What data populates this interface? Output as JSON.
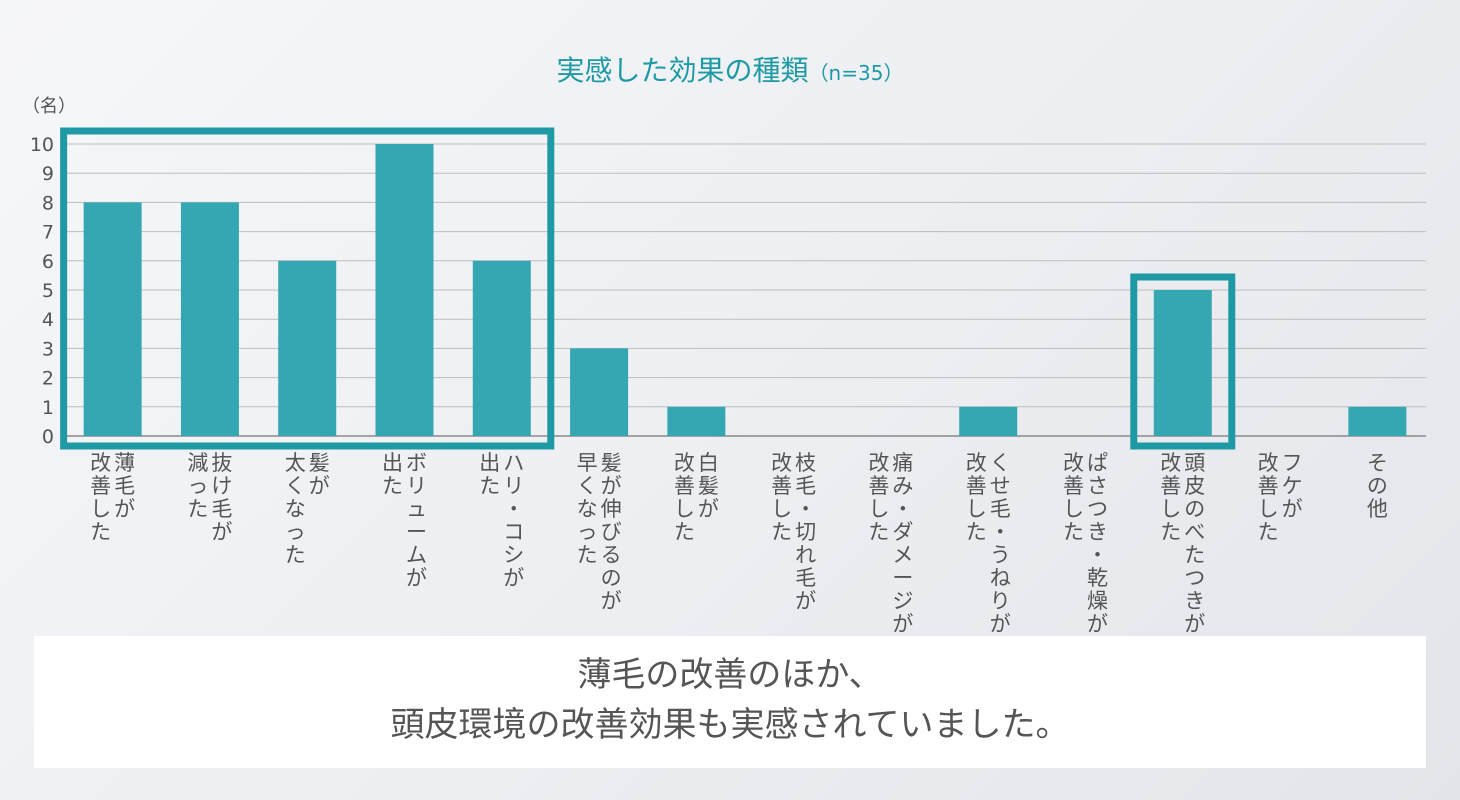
{
  "chart_data": {
    "type": "bar",
    "title": "実感した効果の種類",
    "title_note": "（n=35）",
    "ylabel": "（名）",
    "xlabel": "",
    "ylim": [
      0,
      10
    ],
    "yticks": [
      0,
      1,
      2,
      3,
      4,
      5,
      6,
      7,
      8,
      9,
      10
    ],
    "grid": true,
    "categories": [
      [
        "薄毛が",
        "改善した"
      ],
      [
        "抜け毛が",
        "減った"
      ],
      [
        "髪が",
        "太くなった"
      ],
      [
        "ボリュームが",
        "出た"
      ],
      [
        "ハリ・コシが",
        "出た"
      ],
      [
        "髪が伸びるのが",
        "早くなった"
      ],
      [
        "白髪が",
        "改善した"
      ],
      [
        "枝毛・切れ毛が",
        "改善した"
      ],
      [
        "痛み・ダメージが",
        "改善した"
      ],
      [
        "くせ毛・うねりが",
        "改善した"
      ],
      [
        "ぱさつき・乾燥が",
        "改善した"
      ],
      [
        "頭皮のべたつきが",
        "改善した"
      ],
      [
        "フケが",
        "改善した"
      ],
      [
        "その他"
      ]
    ],
    "values": [
      8,
      8,
      6,
      10,
      6,
      3,
      1,
      0,
      0,
      1,
      0,
      5,
      0,
      1
    ],
    "highlight_groups": [
      [
        0,
        4
      ],
      [
        11,
        11
      ]
    ],
    "bar_color": "#35a7b3",
    "highlight_color": "#1e9aa4",
    "title_color": "#1e9aa4"
  },
  "caption": {
    "line1": "薄毛の改善のほか、",
    "line2": "頭皮環境の改善効果も実感されていました。"
  }
}
